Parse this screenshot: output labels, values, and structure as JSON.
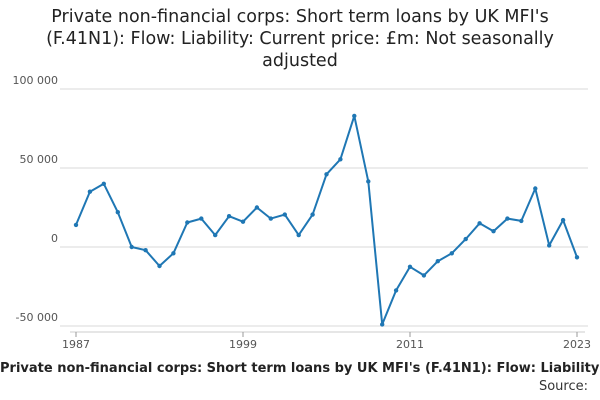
{
  "chart_data": {
    "type": "line",
    "title": "Private non-financial corps: Short term loans by UK MFI's (F.41N1): Flow: Liability: Current price: £m: Not seasonally adjusted",
    "series_label": "Private non-financial corps: Short term loans by UK MFI's (F.41N1): Flow: Liability: Current price: £m: Not seasonally adjusted",
    "source_label": "Source:",
    "xlim": [
      1987,
      2023
    ],
    "ylim": [
      -50000,
      100000
    ],
    "x_ticks": [
      1987,
      1999,
      2011,
      2023
    ],
    "y_ticks": [
      100000,
      50000,
      0,
      -50000
    ],
    "y_tick_labels": [
      "100 000",
      "50 000",
      "0",
      "-50 000"
    ],
    "line_color": "#1f77b4",
    "grid": "horizontal",
    "series": [
      {
        "x": [
          1987,
          1988,
          1989,
          1990,
          1991,
          1992,
          1993,
          1994,
          1995,
          1996,
          1997,
          1998,
          1999,
          2000,
          2001,
          2002,
          2003,
          2004,
          2005,
          2006,
          2007,
          2008,
          2009,
          2010,
          2011,
          2012,
          2013,
          2014,
          2015,
          2016,
          2017,
          2018,
          2019,
          2020,
          2021,
          2022,
          2023
        ],
        "values": [
          14000,
          35000,
          40000,
          22000,
          0,
          -2000,
          -12000,
          -4000,
          15500,
          18000,
          7500,
          19500,
          16000,
          25000,
          18000,
          20500,
          7500,
          20500,
          46000,
          55500,
          83000,
          41500,
          -49000,
          -27500,
          -12500,
          -18000,
          -9000,
          -4000,
          5000,
          15000,
          10000,
          18000,
          16500,
          37000,
          1000,
          17000,
          -6500
        ]
      }
    ]
  }
}
